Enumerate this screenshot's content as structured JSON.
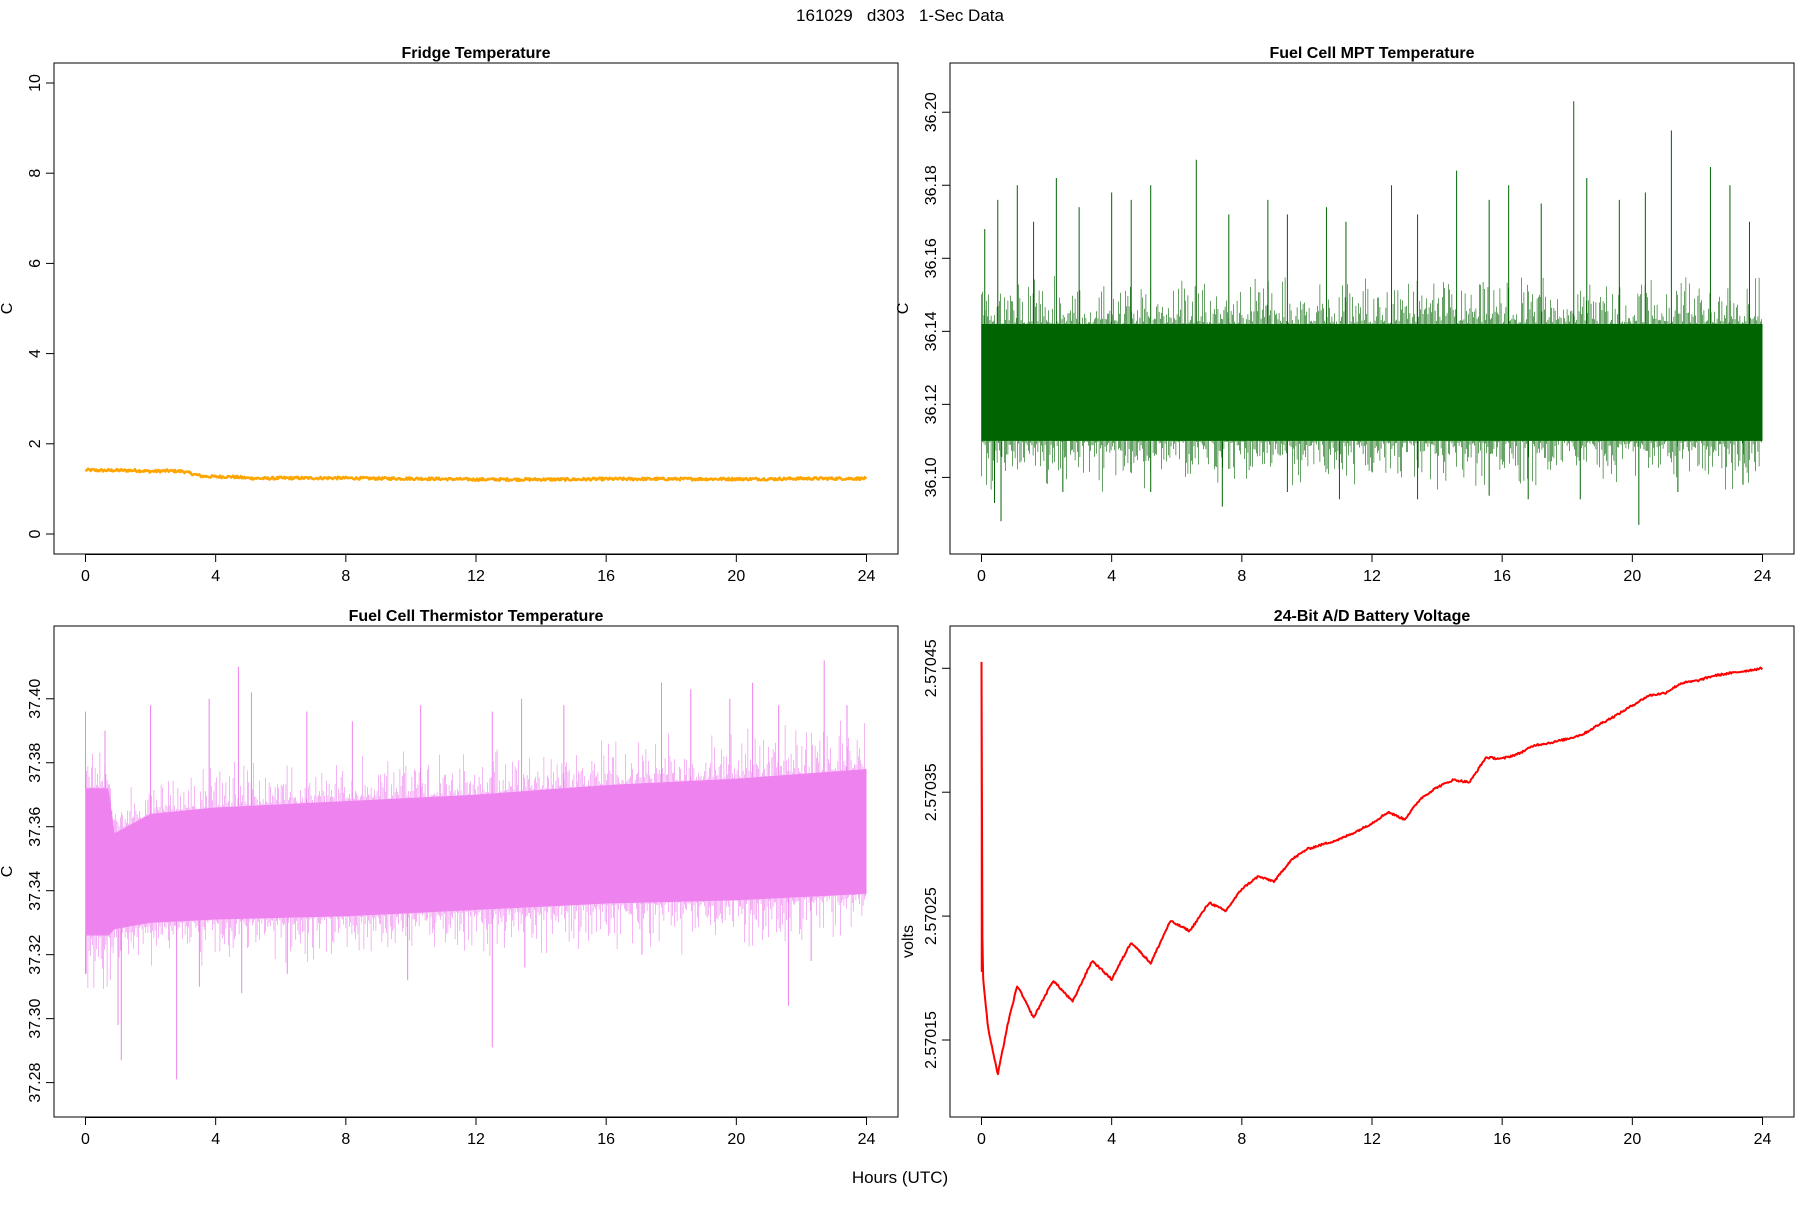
{
  "figure": {
    "title": "161029   d303   1-Sec Data",
    "xlabel": "Hours (UTC)"
  },
  "chart_data": [
    {
      "type": "line",
      "title": "Fridge Temperature",
      "xlabel": "",
      "ylabel": "C",
      "xlim": [
        0,
        24
      ],
      "ylim": [
        0,
        10
      ],
      "xticks": [
        "0",
        "4",
        "8",
        "12",
        "16",
        "20",
        "24"
      ],
      "yticks": [
        "0",
        "2",
        "4",
        "6",
        "8",
        "10"
      ],
      "color": "#FFA500",
      "noise": 0.03,
      "x": [
        0,
        0.5,
        1,
        1.5,
        2,
        2.5,
        3,
        3.3,
        3.6,
        4,
        4.5,
        5,
        5.5,
        6,
        7,
        8,
        9,
        10,
        11,
        12,
        13,
        14,
        15,
        16,
        17,
        18,
        19,
        20,
        21,
        22,
        23,
        24
      ],
      "y": [
        1.42,
        1.41,
        1.41,
        1.41,
        1.39,
        1.4,
        1.39,
        1.33,
        1.28,
        1.27,
        1.27,
        1.24,
        1.23,
        1.24,
        1.24,
        1.24,
        1.23,
        1.23,
        1.22,
        1.21,
        1.21,
        1.21,
        1.21,
        1.22,
        1.22,
        1.22,
        1.22,
        1.22,
        1.22,
        1.23,
        1.23,
        1.23
      ]
    },
    {
      "type": "line",
      "title": "Fuel Cell MPT Temperature",
      "xlabel": "",
      "ylabel": "C",
      "xlim": [
        0,
        24
      ],
      "ylim": [
        36.0845,
        36.208
      ],
      "xticks": [
        "0",
        "4",
        "8",
        "12",
        "16",
        "20",
        "24"
      ],
      "yticks": [
        "36.10",
        "36.12",
        "36.14",
        "36.16",
        "36.18",
        "36.20"
      ],
      "color": "#006400",
      "band": {
        "x": [
          0,
          24
        ],
        "lower": [
          36.11,
          36.11
        ],
        "upper": [
          36.142,
          36.142
        ]
      },
      "spikes": [
        [
          0.1,
          36.168
        ],
        [
          0.5,
          36.176
        ],
        [
          1.1,
          36.18
        ],
        [
          1.6,
          36.17
        ],
        [
          2.3,
          36.182
        ],
        [
          3.0,
          36.174
        ],
        [
          4.0,
          36.178
        ],
        [
          4.6,
          36.176
        ],
        [
          5.2,
          36.18
        ],
        [
          6.6,
          36.187
        ],
        [
          7.6,
          36.172
        ],
        [
          8.8,
          36.176
        ],
        [
          9.4,
          36.172
        ],
        [
          10.6,
          36.174
        ],
        [
          11.2,
          36.17
        ],
        [
          12.6,
          36.18
        ],
        [
          13.4,
          36.172
        ],
        [
          14.6,
          36.184
        ],
        [
          15.6,
          36.176
        ],
        [
          16.2,
          36.18
        ],
        [
          17.2,
          36.175
        ],
        [
          18.2,
          36.203
        ],
        [
          18.6,
          36.182
        ],
        [
          19.6,
          36.176
        ],
        [
          20.4,
          36.178
        ],
        [
          21.2,
          36.195
        ],
        [
          22.4,
          36.185
        ],
        [
          23.0,
          36.18
        ],
        [
          23.6,
          36.17
        ],
        [
          0.4,
          36.093
        ],
        [
          0.6,
          36.088
        ],
        [
          2.5,
          36.096
        ],
        [
          5.2,
          36.096
        ],
        [
          7.4,
          36.092
        ],
        [
          9.4,
          36.096
        ],
        [
          11.0,
          36.094
        ],
        [
          13.4,
          36.094
        ],
        [
          15.6,
          36.095
        ],
        [
          16.8,
          36.094
        ],
        [
          18.4,
          36.094
        ],
        [
          20.2,
          36.087
        ],
        [
          21.4,
          36.096
        ],
        [
          23.4,
          36.098
        ]
      ]
    },
    {
      "type": "line",
      "title": "Fuel Cell Thermistor Temperature",
      "xlabel": "",
      "ylabel": "C",
      "xlim": [
        0,
        24
      ],
      "ylim": [
        37.2755,
        37.4165
      ],
      "xticks": [
        "0",
        "4",
        "8",
        "12",
        "16",
        "20",
        "24"
      ],
      "yticks": [
        "37.28",
        "37.30",
        "37.32",
        "37.34",
        "37.36",
        "37.38",
        "37.40"
      ],
      "color": "#EE82EE",
      "band": {
        "x": [
          0,
          0.7,
          0.9,
          2,
          4,
          8,
          12,
          16,
          20,
          24
        ],
        "lower": [
          37.326,
          37.326,
          37.328,
          37.33,
          37.331,
          37.332,
          37.334,
          37.336,
          37.337,
          37.339
        ],
        "upper": [
          37.372,
          37.372,
          37.358,
          37.364,
          37.366,
          37.368,
          37.37,
          37.373,
          37.375,
          37.378
        ]
      },
      "spikes": [
        [
          0.0,
          37.396
        ],
        [
          0.6,
          37.39
        ],
        [
          2.0,
          37.398
        ],
        [
          3.8,
          37.4
        ],
        [
          4.7,
          37.41
        ],
        [
          5.1,
          37.402
        ],
        [
          6.8,
          37.396
        ],
        [
          8.2,
          37.393
        ],
        [
          10.3,
          37.398
        ],
        [
          12.5,
          37.396
        ],
        [
          13.4,
          37.4
        ],
        [
          14.7,
          37.398
        ],
        [
          17.7,
          37.405
        ],
        [
          18.6,
          37.403
        ],
        [
          19.8,
          37.4
        ],
        [
          20.5,
          37.405
        ],
        [
          21.3,
          37.398
        ],
        [
          22.7,
          37.412
        ],
        [
          23.4,
          37.398
        ],
        [
          0.0,
          37.314
        ],
        [
          1.0,
          37.298
        ],
        [
          1.1,
          37.287
        ],
        [
          2.8,
          37.281
        ],
        [
          3.5,
          37.31
        ],
        [
          4.8,
          37.308
        ],
        [
          6.2,
          37.314
        ],
        [
          9.9,
          37.312
        ],
        [
          12.5,
          37.291
        ],
        [
          13.5,
          37.316
        ],
        [
          17.1,
          37.32
        ],
        [
          21.6,
          37.304
        ],
        [
          22.3,
          37.318
        ]
      ]
    },
    {
      "type": "line",
      "title": "24-Bit A/D Battery Voltage",
      "xlabel": "",
      "ylabel": "volts",
      "xlim": [
        0,
        24
      ],
      "ylim": [
        2.570104,
        2.570468
      ],
      "xticks": [
        "0",
        "4",
        "8",
        "12",
        "16",
        "20",
        "24"
      ],
      "yticks": [
        "2.57015",
        "2.57025",
        "2.57035",
        "2.57045"
      ],
      "color": "#FF0000",
      "noise": 8e-07,
      "x": [
        0,
        0.0,
        0.03,
        0.2,
        0.5,
        0.8,
        1.1,
        1.6,
        2.2,
        2.8,
        3.4,
        4.0,
        4.6,
        5.2,
        5.8,
        6.4,
        7.0,
        7.5,
        8.0,
        8.5,
        9.0,
        9.5,
        10.0,
        10.5,
        11.0,
        11.5,
        12.0,
        12.5,
        13.0,
        13.5,
        14.0,
        14.5,
        15.0,
        15.5,
        16.0,
        16.5,
        17.0,
        17.5,
        18.0,
        18.5,
        19.0,
        19.5,
        20.0,
        20.5,
        21.0,
        21.5,
        22.0,
        22.5,
        23.0,
        23.5,
        24.0
      ],
      "y": [
        2.570455,
        2.570455,
        2.570205,
        2.57016,
        2.570122,
        2.570162,
        2.570194,
        2.570168,
        2.570198,
        2.570181,
        2.570214,
        2.570199,
        2.570229,
        2.570212,
        2.570246,
        2.570238,
        2.570261,
        2.570254,
        2.570272,
        2.570282,
        2.570278,
        2.570295,
        2.570304,
        2.570308,
        2.570312,
        2.570318,
        2.570325,
        2.570334,
        2.570328,
        2.570345,
        2.570354,
        2.57036,
        2.570358,
        2.570378,
        2.570377,
        2.570381,
        2.570388,
        2.57039,
        2.570393,
        2.570397,
        2.570405,
        2.570412,
        2.57042,
        2.570428,
        2.57043,
        2.570438,
        2.57044,
        2.570444,
        2.570446,
        2.570448,
        2.57045
      ]
    }
  ]
}
